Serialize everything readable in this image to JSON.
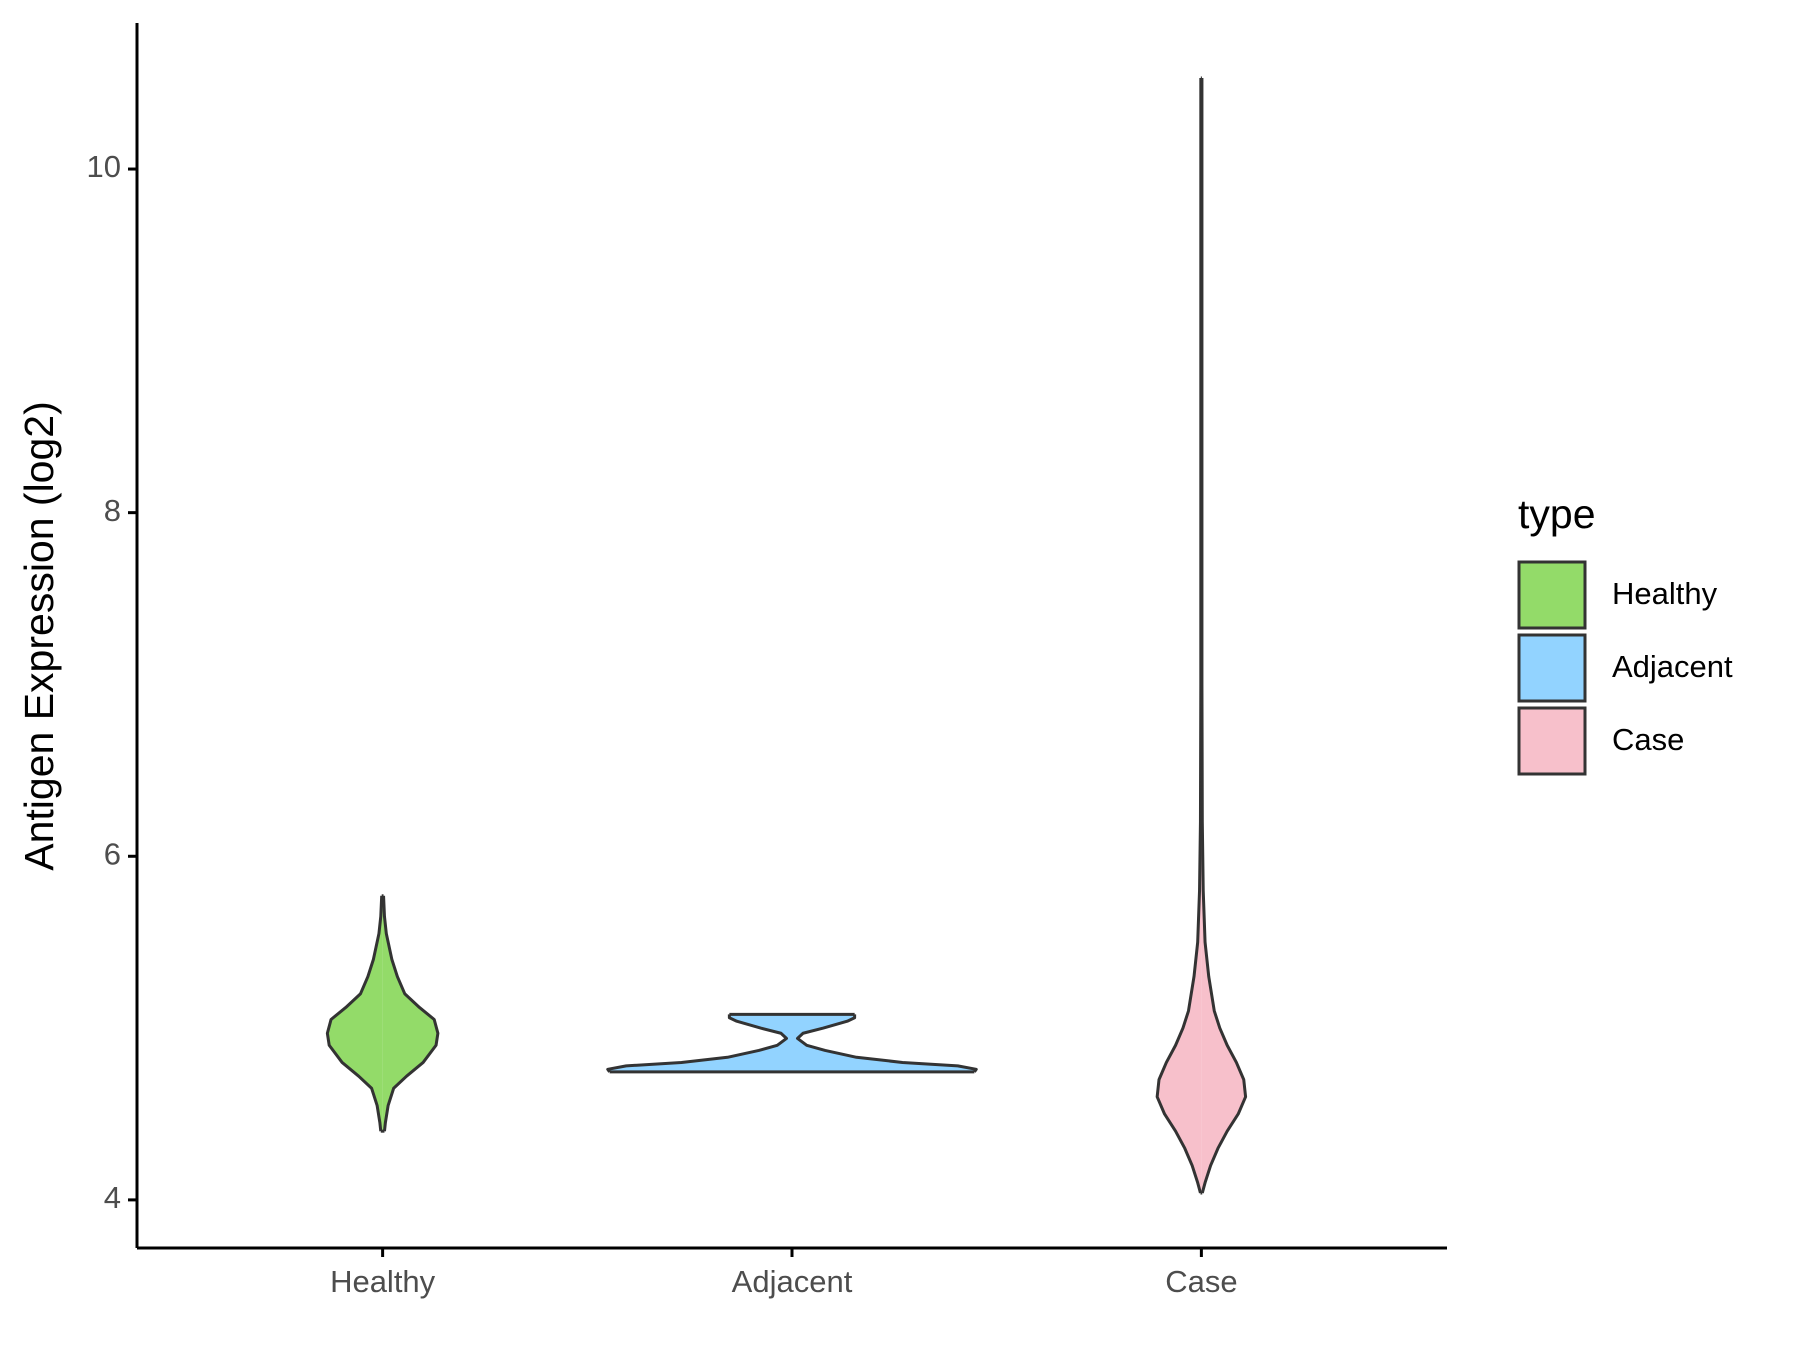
{
  "chart_data": {
    "type": "violin",
    "y_label": "Antigen Expression (log2)",
    "categories": [
      "Healthy",
      "Adjacent",
      "Case"
    ],
    "ylim": [
      3.72,
      10.85
    ],
    "yticks": [
      4,
      6,
      8,
      10
    ],
    "legend_title": "type",
    "legend_position": "right",
    "series": [
      {
        "name": "Healthy",
        "color": "#93db69",
        "y": [
          4.4,
          4.45,
          4.55,
          4.65,
          4.72,
          4.8,
          4.9,
          4.97,
          5.05,
          5.12,
          5.2,
          5.3,
          5.4,
          5.55,
          5.65,
          5.77
        ],
        "density": [
          0.01,
          0.015,
          0.03,
          0.06,
          0.13,
          0.22,
          0.29,
          0.3,
          0.28,
          0.2,
          0.12,
          0.08,
          0.05,
          0.02,
          0.01,
          0.005
        ]
      },
      {
        "name": "Adjacent",
        "color": "#92d3ff",
        "y": [
          4.745,
          4.76,
          4.78,
          4.8,
          4.83,
          4.87,
          4.9,
          4.94,
          4.97,
          5.0,
          5.04,
          5.06,
          5.08
        ],
        "density": [
          0.99,
          1.0,
          0.9,
          0.6,
          0.35,
          0.18,
          0.08,
          0.03,
          0.06,
          0.17,
          0.3,
          0.34,
          0.34
        ]
      },
      {
        "name": "Case",
        "color": "#f7c0cb",
        "y": [
          4.04,
          4.1,
          4.2,
          4.3,
          4.4,
          4.5,
          4.6,
          4.7,
          4.8,
          4.9,
          5.0,
          5.1,
          5.3,
          5.5,
          5.8,
          6.2,
          7,
          10.53
        ],
        "density": [
          0.005,
          0.02,
          0.05,
          0.09,
          0.14,
          0.2,
          0.24,
          0.23,
          0.19,
          0.14,
          0.1,
          0.07,
          0.04,
          0.02,
          0.01,
          0.005,
          0.003,
          0.003
        ]
      }
    ]
  }
}
